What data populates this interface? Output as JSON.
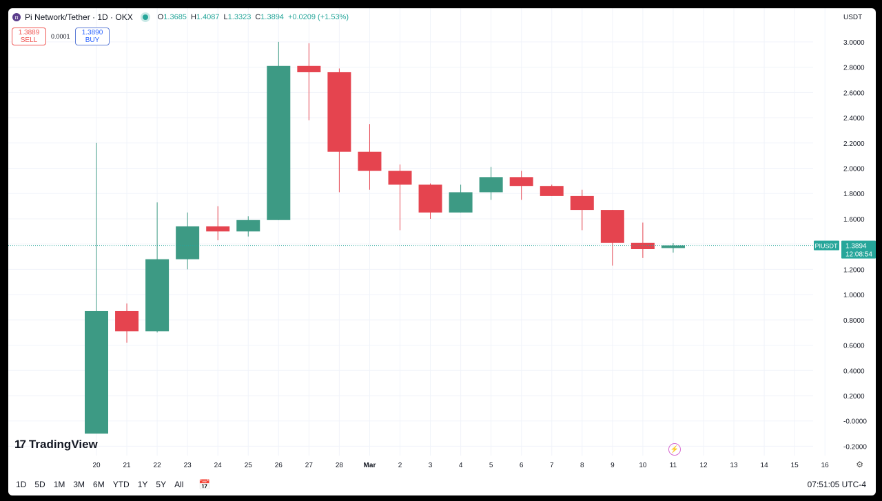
{
  "header": {
    "symbol_title": "Pi Network/Tether · 1D · OKX",
    "ohlc": {
      "o_label": "O",
      "o_value": "1.3685",
      "h_label": "H",
      "h_value": "1.4087",
      "l_label": "L",
      "l_value": "1.3323",
      "c_label": "C",
      "c_value": "1.3894",
      "change": "+0.0209 (+1.53%)"
    }
  },
  "trade": {
    "sell_price": "1.3889",
    "sell_label": "SELL",
    "spread": "0.0001",
    "buy_price": "1.3890",
    "buy_label": "BUY"
  },
  "axis": {
    "currency": "USDT"
  },
  "price_tag": {
    "ticker": "PIUSDT",
    "price": "1.3894",
    "countdown": "12:08:54"
  },
  "branding": {
    "logo_text": "TradingView"
  },
  "bottom_bar": {
    "timeframes": [
      "1D",
      "5D",
      "1M",
      "3M",
      "6M",
      "YTD",
      "1Y",
      "5Y",
      "All"
    ],
    "clock": "07:51:05 UTC-4"
  },
  "colors": {
    "up": "#26a69a",
    "up_body": "#3d9a84",
    "down": "#e5444f",
    "grid": "#f0f3fa",
    "text": "#131722"
  },
  "icons": [
    "pi-logo-icon",
    "status-dot-icon",
    "calendar-icon",
    "gear-icon",
    "lightning-icon",
    "tradingview-logo-icon"
  ],
  "chart_data": {
    "type": "candlestick",
    "ylim": [
      -0.25,
      3.08
    ],
    "yticks": [
      "3.0000",
      "2.8000",
      "2.6000",
      "2.4000",
      "2.2000",
      "2.0000",
      "1.8000",
      "1.6000",
      "1.4000",
      "1.2000",
      "1.0000",
      "0.8000",
      "0.6000",
      "0.4000",
      "0.2000",
      "-0.0000",
      "-0.2000"
    ],
    "ytick_values": [
      3.0,
      2.8,
      2.6,
      2.4,
      2.2,
      2.0,
      1.8,
      1.6,
      1.4,
      1.2,
      1.0,
      0.8,
      0.6,
      0.4,
      0.2,
      0.0,
      -0.2
    ],
    "x_labels": [
      "20",
      "21",
      "22",
      "23",
      "24",
      "25",
      "26",
      "27",
      "28",
      "Mar",
      "2",
      "3",
      "4",
      "5",
      "6",
      "7",
      "8",
      "9",
      "10",
      "11",
      "12",
      "13",
      "14",
      "15",
      "16"
    ],
    "candles": [
      {
        "x": "20",
        "o": -0.1,
        "h": 2.2,
        "l": -0.1,
        "c": 0.87
      },
      {
        "x": "21",
        "o": 0.87,
        "h": 0.93,
        "l": 0.62,
        "c": 0.71
      },
      {
        "x": "22",
        "o": 0.71,
        "h": 1.73,
        "l": 0.7,
        "c": 1.28
      },
      {
        "x": "23",
        "o": 1.28,
        "h": 1.65,
        "l": 1.2,
        "c": 1.54
      },
      {
        "x": "24",
        "o": 1.54,
        "h": 1.7,
        "l": 1.43,
        "c": 1.5
      },
      {
        "x": "25",
        "o": 1.5,
        "h": 1.62,
        "l": 1.46,
        "c": 1.59
      },
      {
        "x": "26",
        "o": 1.59,
        "h": 3.0,
        "l": 1.59,
        "c": 2.81
      },
      {
        "x": "27",
        "o": 2.81,
        "h": 2.99,
        "l": 2.38,
        "c": 2.76
      },
      {
        "x": "28",
        "o": 2.76,
        "h": 2.79,
        "l": 1.81,
        "c": 2.13
      },
      {
        "x": "Mar",
        "o": 2.13,
        "h": 2.35,
        "l": 1.83,
        "c": 1.98
      },
      {
        "x": "2",
        "o": 1.98,
        "h": 2.03,
        "l": 1.51,
        "c": 1.87
      },
      {
        "x": "3",
        "o": 1.87,
        "h": 1.88,
        "l": 1.6,
        "c": 1.65
      },
      {
        "x": "4",
        "o": 1.65,
        "h": 1.87,
        "l": 1.65,
        "c": 1.81
      },
      {
        "x": "5",
        "o": 1.81,
        "h": 2.01,
        "l": 1.75,
        "c": 1.93
      },
      {
        "x": "6",
        "o": 1.93,
        "h": 1.98,
        "l": 1.75,
        "c": 1.86
      },
      {
        "x": "7",
        "o": 1.86,
        "h": 1.87,
        "l": 1.78,
        "c": 1.78
      },
      {
        "x": "8",
        "o": 1.78,
        "h": 1.83,
        "l": 1.51,
        "c": 1.67
      },
      {
        "x": "9",
        "o": 1.67,
        "h": 1.67,
        "l": 1.23,
        "c": 1.41
      },
      {
        "x": "10",
        "o": 1.41,
        "h": 1.57,
        "l": 1.29,
        "c": 1.36
      },
      {
        "x": "11",
        "o": 1.3685,
        "h": 1.4087,
        "l": 1.3323,
        "c": 1.3894
      }
    ],
    "last_price": 1.3894
  }
}
